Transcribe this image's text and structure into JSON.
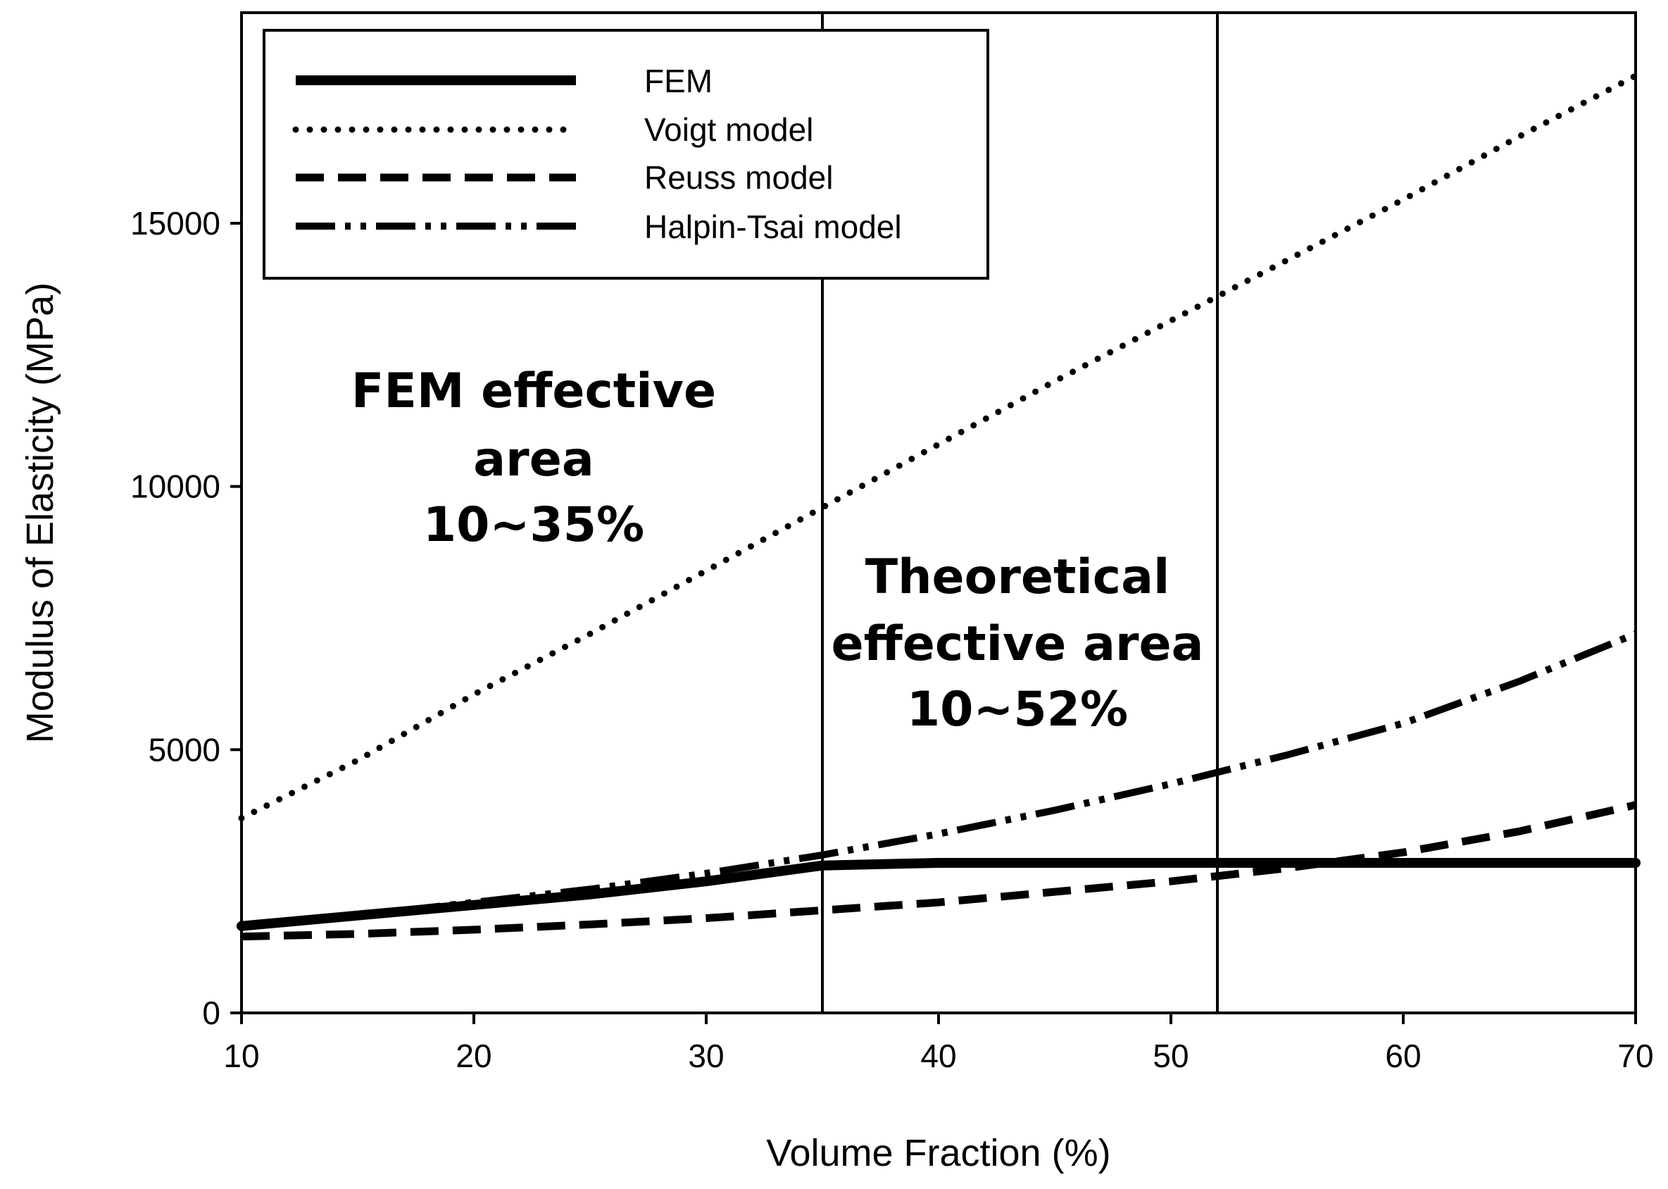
{
  "chart_data": {
    "type": "line",
    "xlabel": "Volume Fraction (%)",
    "ylabel": "Modulus of Elasticity (MPa)",
    "xlim": [
      10,
      70
    ],
    "ylim": [
      0,
      19000
    ],
    "xticks": [
      10,
      20,
      30,
      40,
      50,
      60,
      70
    ],
    "yticks": [
      0,
      5000,
      10000,
      15000
    ],
    "grid": false,
    "legend_position": "top-left",
    "vlines": [
      35,
      52
    ],
    "series": [
      {
        "name": "FEM",
        "style": "solid",
        "x": [
          10,
          15,
          20,
          25,
          30,
          35,
          40,
          45,
          50,
          55,
          60,
          65,
          70
        ],
        "y": [
          1650,
          1850,
          2050,
          2250,
          2500,
          2800,
          2850,
          2850,
          2850,
          2850,
          2850,
          2850,
          2850
        ]
      },
      {
        "name": "Voigt model",
        "style": "dotted",
        "x": [
          10,
          15,
          20,
          25,
          30,
          35,
          40,
          45,
          50,
          55,
          60,
          65,
          70
        ],
        "y": [
          3700,
          4800,
          6050,
          7200,
          8400,
          9600,
          10800,
          12000,
          13150,
          14300,
          15450,
          16650,
          17800
        ]
      },
      {
        "name": "Reuss model",
        "style": "dashed",
        "x": [
          10,
          15,
          20,
          25,
          30,
          35,
          40,
          45,
          50,
          55,
          60,
          65,
          70
        ],
        "y": [
          1450,
          1500,
          1580,
          1680,
          1800,
          1950,
          2100,
          2300,
          2500,
          2750,
          3050,
          3450,
          3950
        ]
      },
      {
        "name": "Halpin-Tsai model",
        "style": "dash-dot-dot",
        "x": [
          10,
          15,
          20,
          25,
          30,
          35,
          40,
          45,
          50,
          55,
          60,
          65,
          70
        ],
        "y": [
          1650,
          1850,
          2100,
          2350,
          2650,
          3000,
          3400,
          3850,
          4350,
          4900,
          5500,
          6300,
          7200
        ]
      }
    ],
    "annotations": [
      {
        "lines": [
          "FEM effective",
          "area",
          "10~35%"
        ]
      },
      {
        "lines": [
          "Theoretical",
          "effective area",
          "10~52%"
        ]
      }
    ]
  }
}
